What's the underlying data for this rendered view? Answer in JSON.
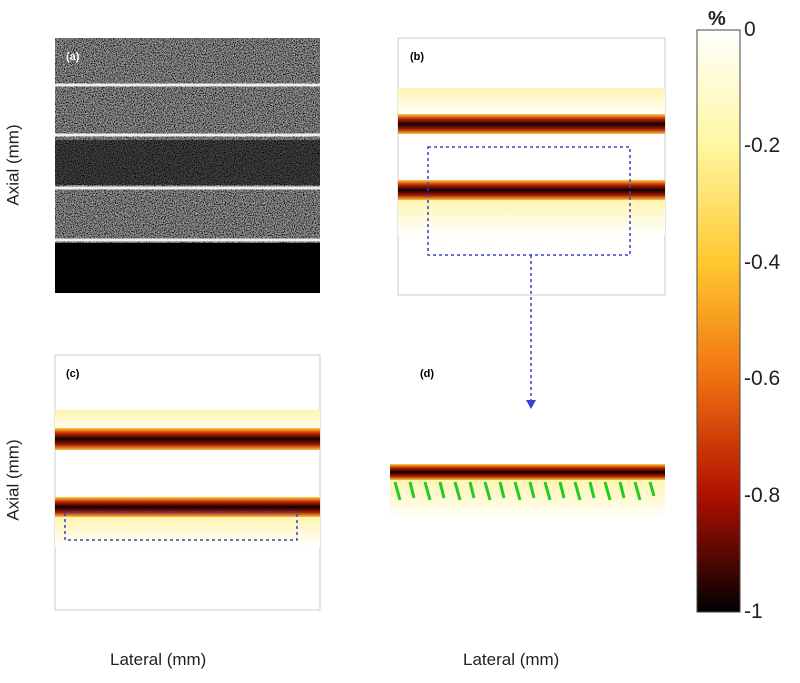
{
  "panels": [
    "(a)",
    "(b)",
    "(c)",
    "(d)"
  ],
  "axis_labels": {
    "axial_top": "Axial (mm)",
    "axial_bottom": "Axial (mm)",
    "lateral_left": "Lateral (mm)",
    "lateral_right": "Lateral (mm)"
  },
  "colorbar": {
    "unit": "%",
    "ticks": [
      0,
      -0.2,
      -0.4,
      -0.6,
      -0.8,
      -1
    ]
  }
}
